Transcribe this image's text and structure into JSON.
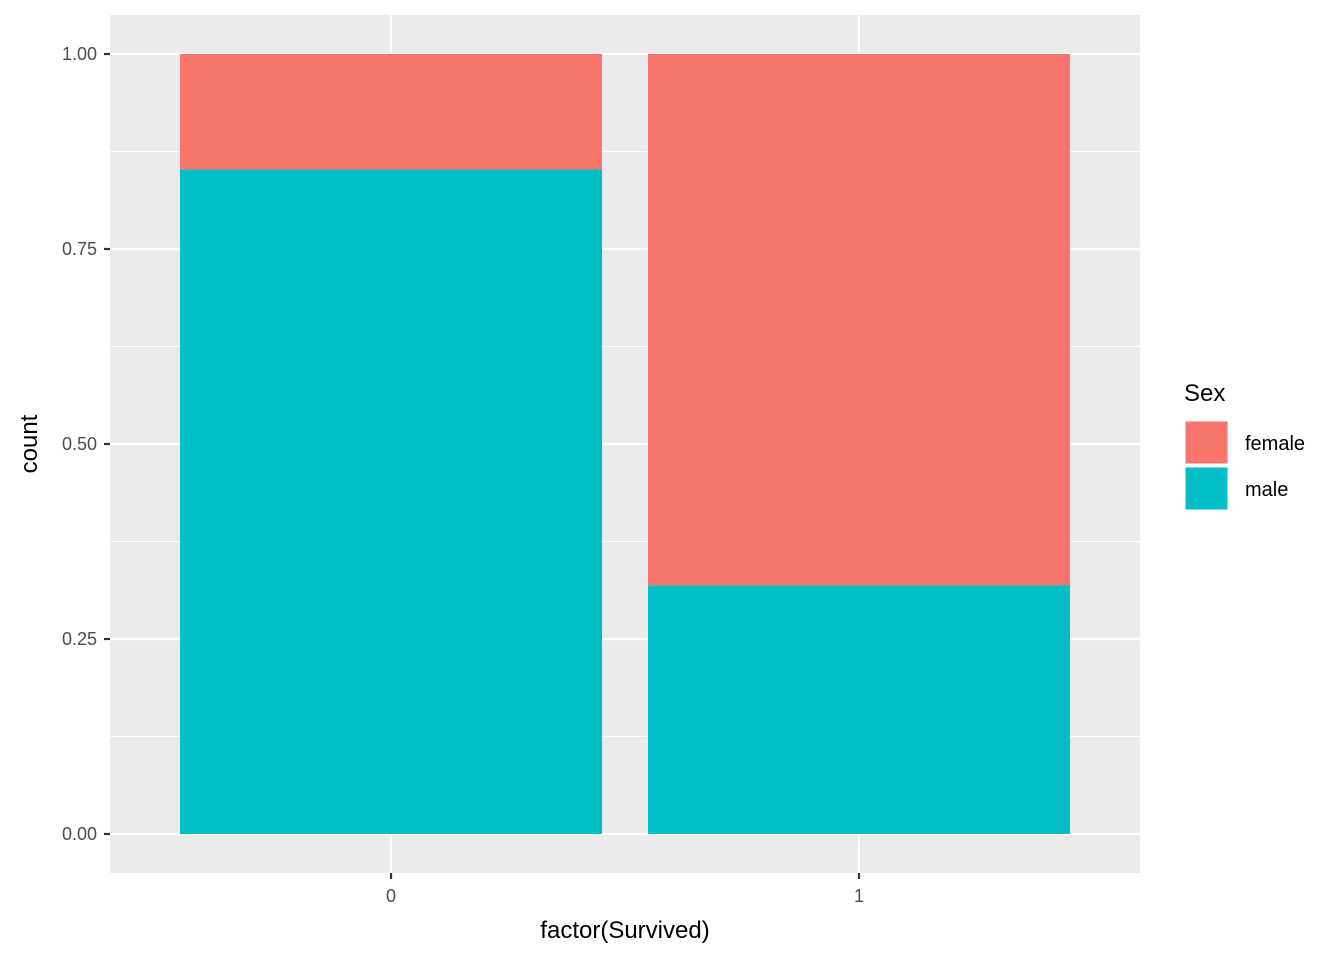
{
  "chart_data": {
    "type": "bar",
    "stacked": true,
    "position": "fill",
    "categories": [
      "0",
      "1"
    ],
    "series": [
      {
        "name": "female",
        "values": [
          0.148,
          0.681
        ],
        "color": "#F8766D"
      },
      {
        "name": "male",
        "values": [
          0.852,
          0.319
        ],
        "color": "#00BFC4"
      }
    ],
    "stack_order": [
      "male",
      "female"
    ],
    "xlabel": "factor(Survived)",
    "ylabel": "count",
    "ylim": [
      0,
      1
    ],
    "yticks": [
      "0.00",
      "0.25",
      "0.50",
      "0.75",
      "1.00"
    ],
    "ytick_values": [
      0,
      0.25,
      0.5,
      0.75,
      1.0
    ],
    "legend": {
      "title": "Sex",
      "placement": "right"
    },
    "grid": true,
    "panel_color": "#EBEBEB",
    "grid_color": "#FFFFFF"
  }
}
